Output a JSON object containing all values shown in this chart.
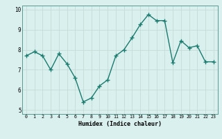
{
  "x": [
    0,
    1,
    2,
    3,
    4,
    5,
    6,
    7,
    8,
    9,
    10,
    11,
    12,
    13,
    14,
    15,
    16,
    17,
    18,
    19,
    20,
    21,
    22,
    23
  ],
  "y": [
    7.7,
    7.9,
    7.7,
    7.0,
    7.8,
    7.3,
    6.6,
    5.4,
    5.6,
    6.2,
    6.5,
    7.7,
    8.0,
    8.6,
    9.25,
    9.75,
    9.45,
    9.45,
    7.35,
    8.45,
    8.1,
    8.2,
    7.4,
    7.4
  ],
  "xlabel": "Humidex (Indice chaleur)",
  "ylim": [
    4.8,
    10.2
  ],
  "xlim": [
    -0.5,
    23.5
  ],
  "yticks": [
    5,
    6,
    7,
    8,
    9,
    10
  ],
  "xticks": [
    0,
    1,
    2,
    3,
    4,
    5,
    6,
    7,
    8,
    9,
    10,
    11,
    12,
    13,
    14,
    15,
    16,
    17,
    18,
    19,
    20,
    21,
    22,
    23
  ],
  "line_color": "#1a7a6e",
  "marker_color": "#1a7a6e",
  "bg_color": "#d9f0ee",
  "grid_color": "#c4dbd8",
  "axis_bg": "#d9f0ee",
  "xlabel_fontsize": 6.0,
  "xtick_fontsize": 4.8,
  "ytick_fontsize": 5.5
}
